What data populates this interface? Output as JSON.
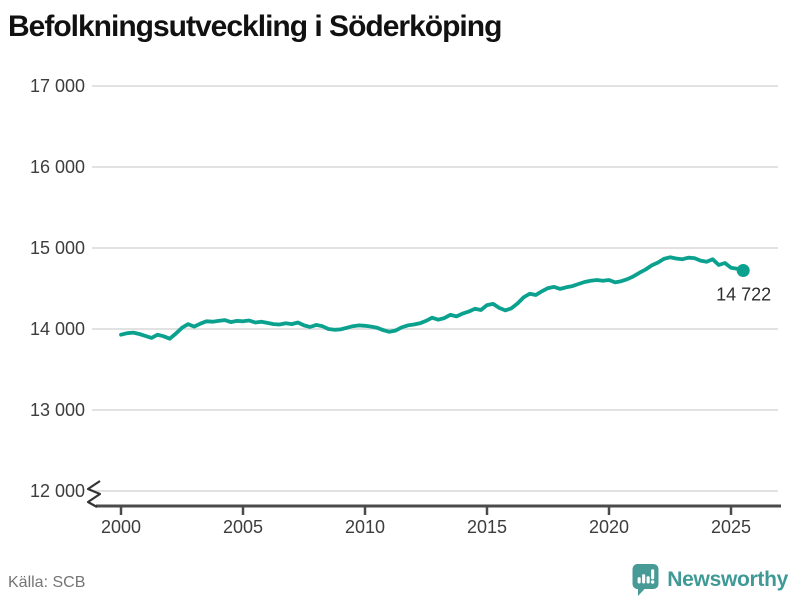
{
  "title": "Befolkningsutveckling i Söderköping",
  "source": "Källa: SCB",
  "branding": {
    "name": "Newsworthy",
    "logo_icon": "bar-chart-speech-bubble-icon",
    "color": "#3f9a96"
  },
  "colors": {
    "line": "#0aa18f",
    "grid": "#e2e2e2",
    "axis": "#4b4b4b",
    "tick_label": "#3d3d3d",
    "annotation": "#2e2e2e"
  },
  "chart_data": {
    "type": "line",
    "title": "Befolkningsutveckling i Söderköping",
    "series_name": "Befolkning i Söderköping",
    "xlabel": "",
    "ylabel": "",
    "x_start": 2000,
    "x_step": 0.25,
    "x_ticks": [
      2000,
      2005,
      2010,
      2015,
      2020,
      2025
    ],
    "x_tick_labels": [
      "2000",
      "2005",
      "2010",
      "2015",
      "2020",
      "2025"
    ],
    "y_ticks": [
      17000,
      16000,
      15000,
      14000,
      13000,
      12000
    ],
    "y_tick_labels": [
      "17 000",
      "16 000",
      "15 000",
      "14 000",
      "13 000",
      "12 000"
    ],
    "ylim": [
      12000,
      17000
    ],
    "xlim": [
      1998.8,
      2026.9
    ],
    "grid": "horizontal",
    "axis_break": true,
    "legend": "none",
    "values": [
      13930,
      13948,
      13955,
      13938,
      13915,
      13890,
      13930,
      13910,
      13880,
      13945,
      14015,
      14060,
      14030,
      14065,
      14095,
      14090,
      14100,
      14110,
      14085,
      14100,
      14095,
      14105,
      14080,
      14090,
      14075,
      14060,
      14055,
      14070,
      14060,
      14080,
      14045,
      14025,
      14050,
      14035,
      14000,
      13990,
      13995,
      14015,
      14035,
      14045,
      14040,
      14030,
      14015,
      13985,
      13965,
      13980,
      14020,
      14045,
      14055,
      14070,
      14100,
      14140,
      14115,
      14135,
      14175,
      14155,
      14190,
      14215,
      14250,
      14235,
      14295,
      14310,
      14260,
      14230,
      14255,
      14315,
      14390,
      14435,
      14420,
      14465,
      14505,
      14520,
      14495,
      14515,
      14530,
      14555,
      14580,
      14595,
      14605,
      14595,
      14605,
      14575,
      14590,
      14615,
      14650,
      14695,
      14735,
      14785,
      14820,
      14865,
      14885,
      14870,
      14860,
      14880,
      14875,
      14845,
      14830,
      14860,
      14790,
      14815,
      14755,
      14745,
      14722
    ],
    "last_value": 14722,
    "last_point_label": "14 722"
  }
}
